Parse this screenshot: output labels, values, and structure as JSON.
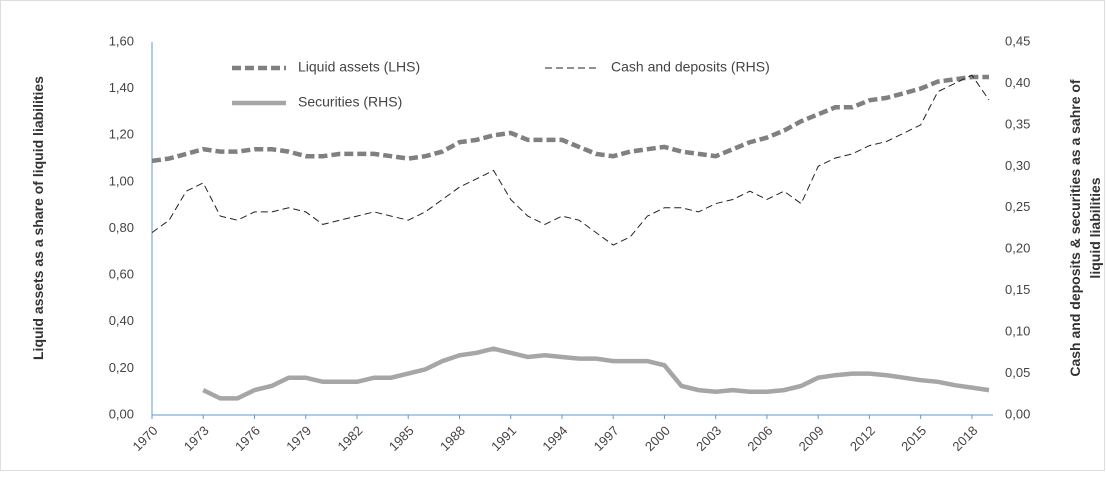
{
  "chart_data": {
    "type": "line",
    "x_label": null,
    "y_label": "Liquid assets as a share of liquid liabilities",
    "y2_label": "Cash and deposits & securities as a sahre of liquid liabilities",
    "x": [
      1970,
      1971,
      1972,
      1973,
      1974,
      1975,
      1976,
      1977,
      1978,
      1979,
      1980,
      1981,
      1982,
      1983,
      1984,
      1985,
      1986,
      1987,
      1988,
      1989,
      1990,
      1991,
      1992,
      1993,
      1994,
      1995,
      1996,
      1997,
      1998,
      1999,
      2000,
      2001,
      2002,
      2003,
      2004,
      2005,
      2006,
      2007,
      2008,
      2009,
      2010,
      2011,
      2012,
      2013,
      2014,
      2015,
      2016,
      2017,
      2018,
      2019
    ],
    "series": [
      {
        "name": "Liquid assets (LHS)",
        "color": "#808080",
        "line_style": "bold-dashed",
        "axis": "y",
        "values": [
          1.09,
          1.1,
          1.12,
          1.14,
          1.13,
          1.13,
          1.14,
          1.14,
          1.13,
          1.11,
          1.11,
          1.12,
          1.12,
          1.12,
          1.11,
          1.1,
          1.11,
          1.13,
          1.17,
          1.18,
          1.2,
          1.21,
          1.18,
          1.18,
          1.18,
          1.15,
          1.12,
          1.11,
          1.13,
          1.14,
          1.15,
          1.13,
          1.12,
          1.11,
          1.14,
          1.17,
          1.19,
          1.22,
          1.26,
          1.29,
          1.32,
          1.32,
          1.35,
          1.36,
          1.38,
          1.4,
          1.43,
          1.44,
          1.45,
          1.45
        ]
      },
      {
        "name": "Cash and deposits (RHS)",
        "color": "#222222",
        "line_style": "dashed",
        "axis": "y2",
        "values": [
          0.22,
          0.235,
          0.27,
          0.28,
          0.24,
          0.235,
          0.245,
          0.245,
          0.25,
          0.245,
          0.23,
          0.235,
          0.24,
          0.245,
          0.24,
          0.235,
          0.245,
          0.26,
          0.275,
          0.285,
          0.295,
          0.26,
          0.24,
          0.23,
          0.24,
          0.235,
          0.22,
          0.205,
          0.215,
          0.24,
          0.25,
          0.25,
          0.245,
          0.255,
          0.26,
          0.27,
          0.26,
          0.27,
          0.255,
          0.3,
          0.31,
          0.315,
          0.325,
          0.33,
          0.34,
          0.35,
          0.39,
          0.4,
          0.41,
          0.38
        ]
      },
      {
        "name": "Securities (RHS)",
        "color": "#a6a6a6",
        "line_style": "solid",
        "axis": "y2",
        "values": [
          null,
          null,
          null,
          0.03,
          0.02,
          0.02,
          0.03,
          0.035,
          0.045,
          0.045,
          0.04,
          0.04,
          0.04,
          0.045,
          0.045,
          0.05,
          0.055,
          0.065,
          0.072,
          0.075,
          0.08,
          0.075,
          0.07,
          0.072,
          0.07,
          0.068,
          0.068,
          0.065,
          0.065,
          0.065,
          0.06,
          0.035,
          0.03,
          0.028,
          0.03,
          0.028,
          0.028,
          0.03,
          0.035,
          0.045,
          0.048,
          0.05,
          0.05,
          0.048,
          0.045,
          0.042,
          0.04,
          0.036,
          0.033,
          0.03
        ]
      }
    ],
    "xlim": [
      1970,
      2019
    ],
    "xticks": [
      1970,
      1973,
      1976,
      1979,
      1982,
      1985,
      1988,
      1991,
      1994,
      1997,
      2000,
      2003,
      2006,
      2009,
      2012,
      2015,
      2018
    ],
    "ylim": [
      0,
      1.6
    ],
    "yticks": [
      {
        "value": 0,
        "label": "0,00"
      },
      {
        "value": 0.2,
        "label": "0,20"
      },
      {
        "value": 0.4,
        "label": "0,40"
      },
      {
        "value": 0.6,
        "label": "0,60"
      },
      {
        "value": 0.8,
        "label": "0,80"
      },
      {
        "value": 1.0,
        "label": "1,00"
      },
      {
        "value": 1.2,
        "label": "1,20"
      },
      {
        "value": 1.4,
        "label": "1,40"
      },
      {
        "value": 1.6,
        "label": "1,60"
      }
    ],
    "y2lim": [
      0,
      0.45
    ],
    "y2ticks": [
      {
        "value": 0,
        "label": "0,00"
      },
      {
        "value": 0.05,
        "label": "0,05"
      },
      {
        "value": 0.1,
        "label": "0,10"
      },
      {
        "value": 0.15,
        "label": "0,15"
      },
      {
        "value": 0.2,
        "label": "0,20"
      },
      {
        "value": 0.25,
        "label": "0,25"
      },
      {
        "value": 0.3,
        "label": "0,30"
      },
      {
        "value": 0.35,
        "label": "0,35"
      },
      {
        "value": 0.4,
        "label": "0,40"
      },
      {
        "value": 0.45,
        "label": "0,45"
      }
    ],
    "grid": false
  }
}
